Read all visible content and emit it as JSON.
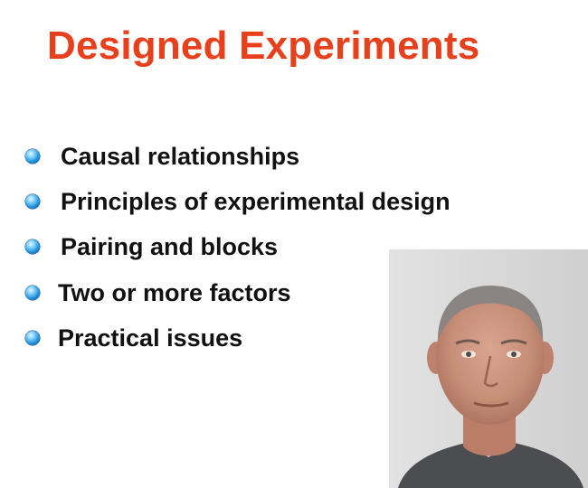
{
  "slide": {
    "title": "Designed Experiments",
    "title_color": "#e8401c",
    "bullet_icon": "blue-sphere-bullet-icon",
    "bullets": [
      "Causal relationships",
      "Principles of experimental design",
      "Pairing and blocks",
      "Two or more factors",
      "Practical issues"
    ]
  }
}
